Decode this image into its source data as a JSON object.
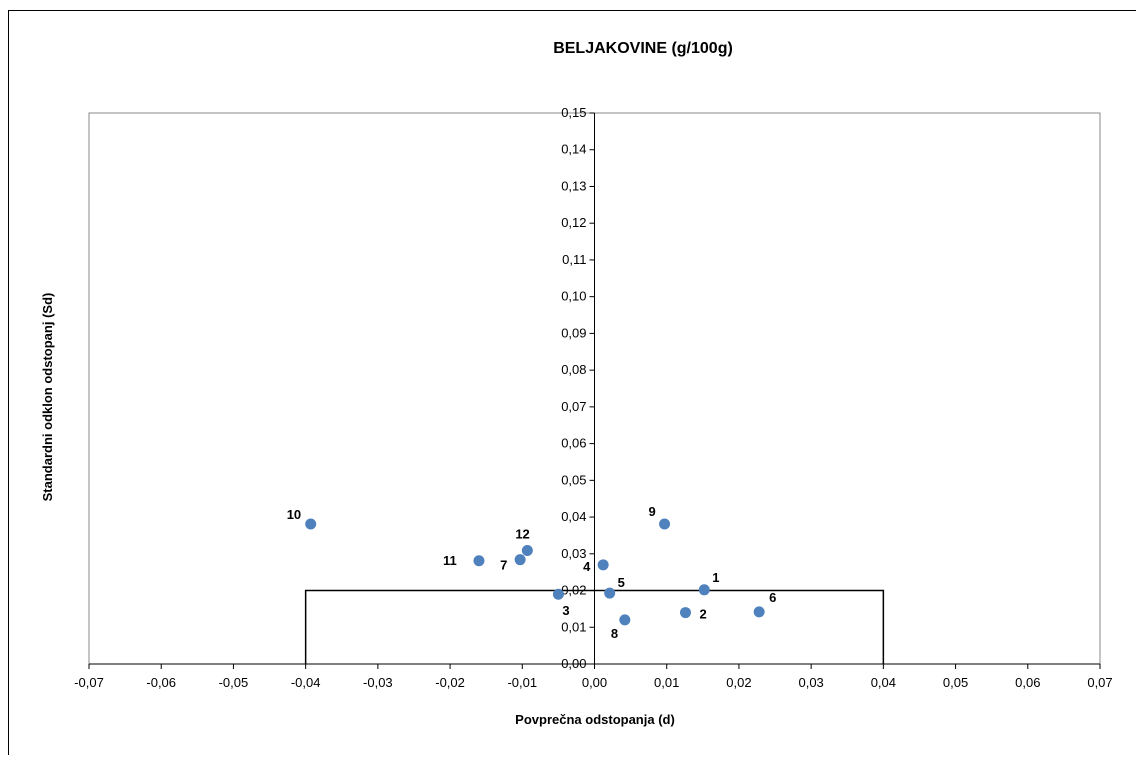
{
  "chart_data": {
    "type": "scatter",
    "title": "BELJAKOVINE (g/100g)",
    "xlabel": "Povprečna odstopanja (d)",
    "ylabel": "Standardni odklon odstopanj (Sd)",
    "xlim": [
      -0.07,
      0.07
    ],
    "ylim": [
      0,
      0.15
    ],
    "x_ticks": [
      "-0,07",
      "-0,06",
      "-0,05",
      "-0,04",
      "-0,03",
      "-0,02",
      "-0,01",
      "0,00",
      "0,01",
      "0,02",
      "0,03",
      "0,04",
      "0,05",
      "0,06",
      "0,07"
    ],
    "y_ticks": [
      "0,00",
      "0,01",
      "0,02",
      "0,03",
      "0,04",
      "0,05",
      "0,06",
      "0,07",
      "0,08",
      "0,09",
      "0,10",
      "0,11",
      "0,12",
      "0,13",
      "0,14",
      "0,15"
    ],
    "grid": false,
    "legend": "none",
    "marker_color": "#4F81BD",
    "points": [
      {
        "label": "1",
        "x": 0.0152,
        "y": 0.0202
      },
      {
        "label": "2",
        "x": 0.0126,
        "y": 0.014
      },
      {
        "label": "3",
        "x": -0.005,
        "y": 0.019
      },
      {
        "label": "4",
        "x": 0.0012,
        "y": 0.027
      },
      {
        "label": "5",
        "x": 0.0021,
        "y": 0.0193
      },
      {
        "label": "6",
        "x": 0.0228,
        "y": 0.0142
      },
      {
        "label": "7",
        "x": -0.0103,
        "y": 0.0284
      },
      {
        "label": "8",
        "x": 0.0042,
        "y": 0.012
      },
      {
        "label": "9",
        "x": 0.0097,
        "y": 0.0381
      },
      {
        "label": "10",
        "x": -0.0393,
        "y": 0.0381
      },
      {
        "label": "11",
        "x": -0.016,
        "y": 0.0281
      },
      {
        "label": "12",
        "x": -0.0093,
        "y": 0.0309
      }
    ],
    "limit_box": {
      "x_min": -0.04,
      "x_max": 0.04,
      "y_max": 0.02
    }
  }
}
